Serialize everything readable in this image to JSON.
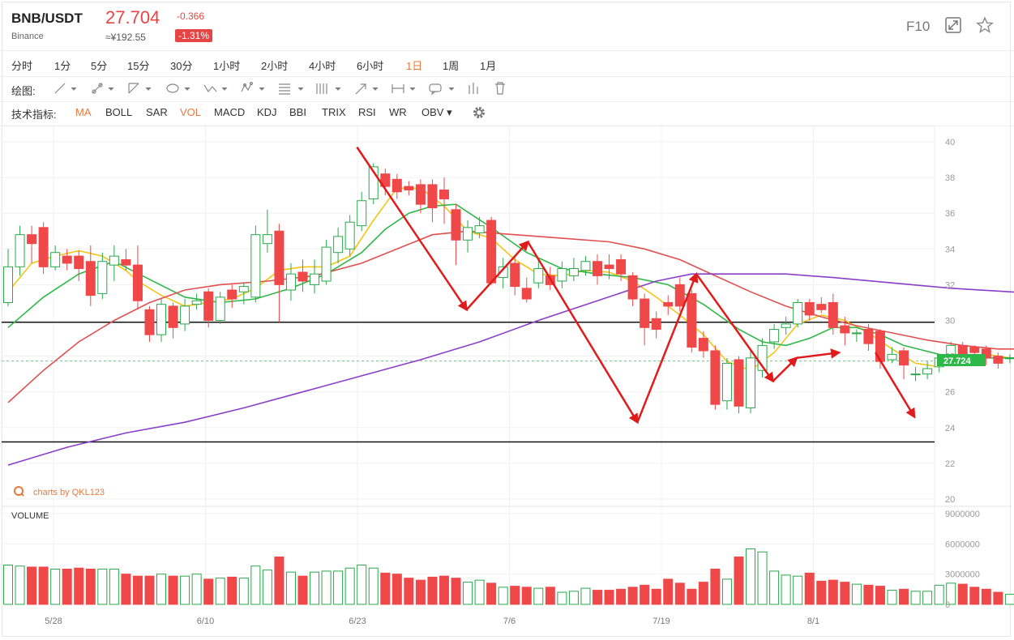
{
  "header": {
    "symbol": "BNB/USDT",
    "exchange": "Binance",
    "price": "27.704",
    "price_cny": "≈¥192.55",
    "change": "-0.366",
    "change_pct": "-1.31%",
    "f10_label": "F10",
    "icons": [
      "expand-icon",
      "star-icon"
    ]
  },
  "timeframes": [
    {
      "label": "分时"
    },
    {
      "label": "1分"
    },
    {
      "label": "5分"
    },
    {
      "label": "15分"
    },
    {
      "label": "30分"
    },
    {
      "label": "1小时"
    },
    {
      "label": "2小时"
    },
    {
      "label": "4小时"
    },
    {
      "label": "6小时"
    },
    {
      "label": "1日",
      "active": true
    },
    {
      "label": "1周"
    },
    {
      "label": "1月"
    }
  ],
  "drawing": {
    "label": "绘图:",
    "tools": [
      "line-tool-icon",
      "ray-tool-icon",
      "trend-tool-icon",
      "ellipse-tool-icon",
      "wave-tool-icon",
      "pattern-tool-icon",
      "fib-tool-icon",
      "parallel-tool-icon",
      "arrow-tool-icon",
      "range-tool-icon",
      "note-tool-icon",
      "bars-tool-icon",
      "delete-icon"
    ]
  },
  "indicators": {
    "label": "技术指标:",
    "items": [
      {
        "label": "MA",
        "active": true
      },
      {
        "label": "BOLL"
      },
      {
        "label": "SAR"
      },
      {
        "label": "VOL",
        "active": true
      },
      {
        "label": "MACD"
      },
      {
        "label": "KDJ"
      },
      {
        "label": "BBI"
      },
      {
        "label": "TRIX"
      },
      {
        "label": "RSI"
      },
      {
        "label": "WR"
      },
      {
        "label": "OBV ▾"
      }
    ]
  },
  "watermark": "charts by QKL123",
  "volume_label": "VOLUME",
  "colors": {
    "up": "#2aa84a",
    "down": "#f04848",
    "ma5": "#f3c518",
    "ma10": "#2fb84a",
    "ma20": "#e05050",
    "ma60": "#8a3fc8",
    "accent": "#e8783c",
    "last_price_bg": "#2fb84a"
  },
  "chart_data": {
    "type": "candlestick",
    "x_ticks": [
      "5/28",
      "6/10",
      "6/23",
      "7/6",
      "7/19",
      "8/1"
    ],
    "y_ticks": [
      "40",
      "38",
      "36",
      "34",
      "32",
      "30",
      "28",
      "26",
      "24",
      "22",
      "20"
    ],
    "ylim": [
      20,
      40
    ],
    "volume_ticks": [
      "9000000",
      "6000000",
      "3000000",
      "0"
    ],
    "volume_lim": [
      0,
      9000000
    ],
    "last_price_label": "27.724",
    "last_price": 27.724,
    "horizontal_lines": [
      29.9,
      23.2
    ],
    "candles": [
      [
        31.0,
        33.0,
        30.8,
        34.0,
        3900000
      ],
      [
        33.0,
        34.8,
        32.5,
        35.3,
        3800000
      ],
      [
        34.8,
        34.3,
        33.2,
        35.3,
        3700000
      ],
      [
        35.2,
        33.0,
        32.6,
        35.5,
        3700000
      ],
      [
        33.0,
        33.8,
        32.8,
        34.2,
        3500000
      ],
      [
        33.6,
        33.2,
        32.8,
        34.0,
        3500000
      ],
      [
        33.6,
        32.9,
        32.2,
        33.9,
        3600000
      ],
      [
        33.3,
        31.4,
        30.8,
        34.2,
        3500000
      ],
      [
        31.5,
        33.3,
        31.2,
        33.8,
        3500000
      ],
      [
        33.1,
        33.6,
        32.2,
        34.2,
        3500000
      ],
      [
        33.4,
        33.1,
        32.8,
        34.0,
        3000000
      ],
      [
        33.1,
        31.1,
        30.6,
        34.2,
        2800000
      ],
      [
        30.6,
        29.2,
        28.8,
        30.8,
        2800000
      ],
      [
        29.2,
        30.9,
        28.8,
        31.2,
        3000000
      ],
      [
        30.8,
        29.6,
        29.0,
        31.0,
        2800000
      ],
      [
        29.8,
        30.8,
        29.4,
        31.2,
        2800000
      ],
      [
        30.9,
        31.1,
        30.6,
        31.5,
        3000000
      ],
      [
        31.6,
        30.0,
        29.6,
        31.8,
        2500000
      ],
      [
        30.0,
        31.3,
        29.8,
        31.6,
        2600000
      ],
      [
        31.7,
        31.2,
        30.7,
        32.0,
        2700000
      ],
      [
        31.6,
        31.9,
        30.9,
        32.1,
        2600000
      ],
      [
        31.3,
        34.8,
        31.0,
        35.3,
        3800000
      ],
      [
        34.3,
        34.8,
        33.8,
        36.2,
        3400000
      ],
      [
        35.0,
        32.0,
        29.9,
        35.4,
        4700000
      ],
      [
        31.7,
        32.6,
        31.1,
        33.2,
        3200000
      ],
      [
        32.7,
        32.2,
        31.6,
        33.4,
        2800000
      ],
      [
        32.0,
        32.6,
        31.5,
        33.4,
        3200000
      ],
      [
        32.2,
        34.1,
        32.0,
        34.5,
        3300000
      ],
      [
        33.8,
        34.7,
        33.2,
        35.2,
        3300000
      ],
      [
        34.0,
        35.5,
        33.6,
        35.9,
        3600000
      ],
      [
        35.3,
        36.7,
        35.0,
        37.2,
        3900000
      ],
      [
        36.8,
        38.6,
        36.5,
        38.8,
        3600000
      ],
      [
        38.2,
        37.5,
        37.0,
        38.5,
        3100000
      ],
      [
        37.9,
        37.2,
        36.8,
        38.2,
        3000000
      ],
      [
        37.5,
        37.3,
        37.0,
        37.8,
        2600000
      ],
      [
        37.6,
        36.5,
        36.0,
        37.9,
        2400000
      ],
      [
        37.6,
        36.3,
        35.5,
        37.9,
        2700000
      ],
      [
        37.3,
        36.8,
        35.4,
        38.0,
        2800000
      ],
      [
        36.2,
        34.5,
        33.1,
        36.5,
        2600000
      ],
      [
        34.5,
        35.2,
        33.8,
        35.6,
        2200000
      ],
      [
        34.9,
        35.3,
        34.6,
        35.8,
        2400000
      ],
      [
        35.6,
        32.1,
        32.0,
        35.8,
        2100000
      ],
      [
        32.4,
        33.0,
        31.8,
        33.5,
        1700000
      ],
      [
        33.2,
        31.9,
        31.4,
        33.6,
        1800000
      ],
      [
        31.8,
        31.2,
        31.0,
        32.4,
        1700000
      ],
      [
        32.1,
        32.9,
        31.8,
        33.4,
        1600000
      ],
      [
        32.5,
        32.0,
        31.7,
        33.0,
        1700000
      ],
      [
        32.2,
        32.9,
        31.8,
        33.3,
        1200000
      ],
      [
        32.5,
        32.9,
        32.2,
        33.5,
        1300000
      ],
      [
        32.8,
        33.3,
        32.5,
        33.6,
        1600000
      ],
      [
        33.3,
        32.5,
        32.0,
        33.7,
        1400000
      ],
      [
        33.1,
        32.9,
        32.3,
        33.7,
        1400000
      ],
      [
        33.4,
        32.6,
        32.2,
        33.7,
        1500000
      ],
      [
        32.5,
        31.2,
        30.8,
        32.7,
        1700000
      ],
      [
        31.2,
        29.6,
        28.6,
        31.5,
        1900000
      ],
      [
        30.1,
        29.5,
        29.0,
        30.5,
        1500000
      ],
      [
        31.0,
        30.8,
        30.3,
        31.4,
        2500000
      ],
      [
        32.0,
        30.8,
        30.5,
        32.4,
        2100000
      ],
      [
        31.5,
        28.5,
        28.2,
        31.7,
        1500000
      ],
      [
        29.0,
        28.3,
        27.9,
        29.4,
        2200000
      ],
      [
        28.3,
        25.3,
        25.0,
        28.6,
        3500000
      ],
      [
        25.5,
        27.6,
        25.0,
        27.9,
        2500000
      ],
      [
        27.8,
        25.2,
        24.8,
        28.0,
        4700000
      ],
      [
        25.1,
        27.9,
        24.8,
        28.4,
        5500000
      ],
      [
        27.2,
        28.6,
        26.8,
        29.0,
        5200000
      ],
      [
        28.8,
        29.5,
        28.4,
        29.8,
        3300000
      ],
      [
        29.6,
        29.8,
        29.2,
        30.2,
        2900000
      ],
      [
        29.8,
        31.0,
        29.6,
        31.2,
        2800000
      ],
      [
        31.0,
        30.3,
        30.0,
        31.2,
        3100000
      ],
      [
        30.9,
        30.6,
        30.4,
        31.3,
        2300000
      ],
      [
        31.0,
        29.6,
        29.2,
        31.5,
        2400000
      ],
      [
        29.7,
        29.3,
        28.6,
        30.2,
        2200000
      ],
      [
        29.3,
        29.3,
        28.8,
        29.5,
        2000000
      ],
      [
        29.5,
        28.7,
        28.3,
        29.8,
        1900000
      ],
      [
        29.4,
        27.7,
        27.3,
        29.5,
        1800000
      ],
      [
        27.8,
        28.1,
        27.6,
        28.5,
        1400000
      ],
      [
        28.3,
        27.5,
        26.7,
        28.5,
        1500000
      ],
      [
        27.0,
        27.0,
        26.6,
        27.4,
        1300000
      ],
      [
        27.0,
        27.3,
        26.7,
        27.7,
        1300000
      ],
      [
        27.4,
        27.9,
        27.1,
        28.1,
        1900000
      ],
      [
        27.9,
        28.6,
        27.6,
        28.8,
        2100000
      ],
      [
        28.6,
        28.0,
        27.7,
        28.8,
        2000000
      ],
      [
        28.5,
        28.2,
        27.9,
        28.6,
        1700000
      ],
      [
        28.4,
        27.9,
        27.5,
        28.6,
        1500000
      ],
      [
        28.0,
        27.6,
        27.3,
        28.2,
        1200000
      ],
      [
        27.9,
        27.9,
        27.6,
        28.1,
        1000000
      ],
      [
        27.8,
        28.1,
        27.6,
        28.3,
        1300000
      ],
      [
        28.2,
        28.1,
        27.7,
        28.4,
        1100000
      ],
      [
        28.3,
        27.6,
        27.4,
        28.5,
        1500000
      ],
      [
        27.8,
        27.7,
        27.6,
        27.9,
        200000
      ]
    ],
    "ma_series": [
      {
        "name": "MA5",
        "values": [
          [
            0,
            31.6
          ],
          [
            2,
            33.2
          ],
          [
            4,
            33.6
          ],
          [
            6,
            33.9
          ],
          [
            8,
            33.6
          ],
          [
            10,
            32.8
          ],
          [
            11,
            32.2
          ],
          [
            13,
            31.4
          ],
          [
            15,
            30.8
          ],
          [
            17,
            31.0
          ],
          [
            19,
            31.2
          ],
          [
            21,
            31.8
          ],
          [
            23,
            32.8
          ],
          [
            25,
            33.0
          ],
          [
            27,
            33.0
          ],
          [
            29,
            33.6
          ],
          [
            31,
            35.6
          ],
          [
            33,
            37.4
          ],
          [
            35,
            37.4
          ],
          [
            37,
            36.4
          ],
          [
            39,
            35.0
          ],
          [
            41,
            34.6
          ],
          [
            43,
            33.4
          ],
          [
            45,
            32.6
          ],
          [
            47,
            32.5
          ],
          [
            49,
            32.8
          ],
          [
            51,
            32.7
          ],
          [
            53,
            32.2
          ],
          [
            55,
            31.3
          ],
          [
            57,
            30.3
          ],
          [
            59,
            29.2
          ],
          [
            61,
            27.7
          ],
          [
            63,
            27.2
          ],
          [
            65,
            28.2
          ],
          [
            67,
            29.8
          ],
          [
            69,
            30.3
          ],
          [
            71,
            30.0
          ],
          [
            73,
            29.3
          ],
          [
            75,
            28.4
          ],
          [
            77,
            27.6
          ],
          [
            79,
            27.4
          ],
          [
            81,
            27.8
          ],
          [
            83,
            28.1
          ],
          [
            85,
            27.9
          ],
          [
            87,
            27.9
          ],
          [
            89,
            27.8
          ]
        ]
      },
      {
        "name": "MA10",
        "values": [
          [
            0,
            29.6
          ],
          [
            3,
            31.3
          ],
          [
            6,
            32.6
          ],
          [
            9,
            33.3
          ],
          [
            12,
            32.3
          ],
          [
            15,
            31.3
          ],
          [
            18,
            31.0
          ],
          [
            21,
            31.2
          ],
          [
            24,
            31.8
          ],
          [
            27,
            32.6
          ],
          [
            30,
            33.8
          ],
          [
            32,
            35.1
          ],
          [
            34,
            36.0
          ],
          [
            36,
            36.4
          ],
          [
            38,
            36.5
          ],
          [
            41,
            35.2
          ],
          [
            44,
            33.8
          ],
          [
            47,
            32.9
          ],
          [
            50,
            32.6
          ],
          [
            53,
            32.4
          ],
          [
            56,
            32.0
          ],
          [
            59,
            30.9
          ],
          [
            62,
            29.5
          ],
          [
            64,
            28.8
          ],
          [
            66,
            28.6
          ],
          [
            68,
            29.0
          ],
          [
            70,
            29.6
          ],
          [
            72,
            29.6
          ],
          [
            74,
            29.2
          ],
          [
            76,
            28.6
          ],
          [
            79,
            28.1
          ],
          [
            82,
            27.9
          ],
          [
            85,
            27.9
          ],
          [
            89,
            27.9
          ]
        ]
      },
      {
        "name": "MA20",
        "values": [
          [
            0,
            25.4
          ],
          [
            3,
            27.2
          ],
          [
            6,
            28.8
          ],
          [
            9,
            30.0
          ],
          [
            12,
            31.0
          ],
          [
            15,
            31.7
          ],
          [
            18,
            32.0
          ],
          [
            22,
            32.2
          ],
          [
            26,
            32.5
          ],
          [
            30,
            33.2
          ],
          [
            33,
            34.0
          ],
          [
            36,
            34.8
          ],
          [
            39,
            35.0
          ],
          [
            43,
            34.8
          ],
          [
            47,
            34.6
          ],
          [
            51,
            34.4
          ],
          [
            54,
            34.0
          ],
          [
            57,
            33.4
          ],
          [
            60,
            32.5
          ],
          [
            63,
            31.6
          ],
          [
            66,
            30.8
          ],
          [
            69,
            30.2
          ],
          [
            72,
            29.7
          ],
          [
            75,
            29.3
          ],
          [
            78,
            28.9
          ],
          [
            81,
            28.6
          ],
          [
            84,
            28.4
          ],
          [
            87,
            28.4
          ],
          [
            89,
            28.3
          ]
        ]
      },
      {
        "name": "MA60",
        "values": [
          [
            0,
            21.9
          ],
          [
            5,
            22.9
          ],
          [
            10,
            23.7
          ],
          [
            15,
            24.3
          ],
          [
            20,
            25.1
          ],
          [
            25,
            26.0
          ],
          [
            30,
            26.9
          ],
          [
            35,
            27.8
          ],
          [
            40,
            28.8
          ],
          [
            45,
            30.0
          ],
          [
            50,
            31.1
          ],
          [
            55,
            32.2
          ],
          [
            58,
            32.6
          ],
          [
            62,
            32.6
          ],
          [
            66,
            32.6
          ],
          [
            70,
            32.4
          ],
          [
            75,
            32.1
          ],
          [
            80,
            31.8
          ],
          [
            85,
            31.6
          ],
          [
            89,
            31.4
          ]
        ]
      }
    ]
  }
}
